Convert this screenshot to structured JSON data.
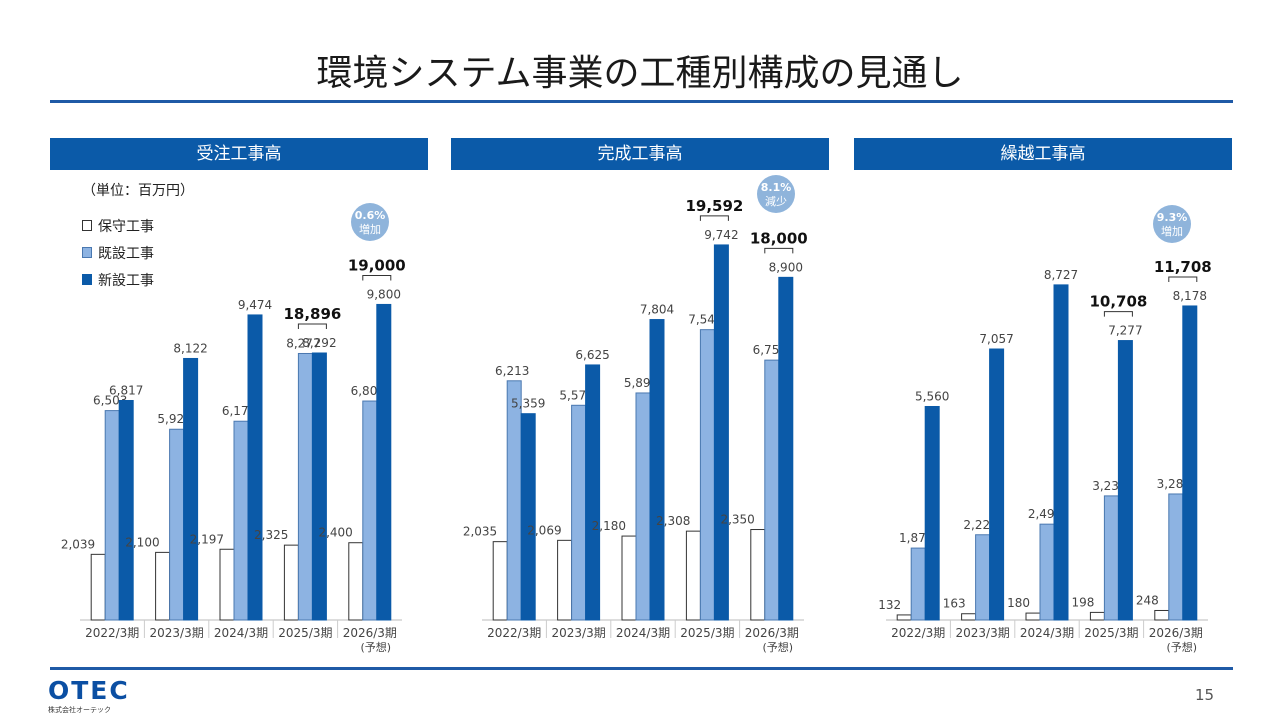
{
  "page": {
    "title": "環境システム事業の工種別構成の見通し",
    "page_number": "15"
  },
  "unit_label": "（単位：百万円）",
  "legend": [
    {
      "label": "保守工事",
      "color": "#ffffff"
    },
    {
      "label": "既設工事",
      "color": "#8db3e2"
    },
    {
      "label": "新設工事",
      "color": "#0b5aa8"
    }
  ],
  "logo": {
    "text": "OTEC",
    "sub": "株式会社オーテック"
  },
  "colors": {
    "accent": "#0b5aa8",
    "rule": "#1f5aa6",
    "badge": "#8fb4db"
  },
  "chart_data": [
    {
      "type": "bar",
      "title": "受注工事高",
      "categories": [
        "2022/3期",
        "2023/3期",
        "2024/3期",
        "2025/3期",
        "2026/3期"
      ],
      "category_notes": [
        "",
        "",
        "",
        "",
        "(予想)"
      ],
      "series": [
        {
          "name": "保守工事",
          "values": [
            2039,
            2100,
            2197,
            2325,
            2400
          ]
        },
        {
          "name": "既設工事",
          "values": [
            6503,
            5924,
            6173,
            8277,
            6800
          ]
        },
        {
          "name": "新設工事",
          "values": [
            6817,
            8122,
            9474,
            8292,
            9800
          ]
        }
      ],
      "totals": [
        {
          "index": 3,
          "label": "18,896"
        },
        {
          "index": 4,
          "label": "19,000"
        }
      ],
      "badge": {
        "line1": "0.6%",
        "line2": "増加"
      }
    },
    {
      "type": "bar",
      "title": "完成工事高",
      "categories": [
        "2022/3期",
        "2023/3期",
        "2024/3期",
        "2025/3期",
        "2026/3期"
      ],
      "category_notes": [
        "",
        "",
        "",
        "",
        "(予想)"
      ],
      "series": [
        {
          "name": "保守工事",
          "values": [
            2035,
            2069,
            2180,
            2308,
            2350
          ]
        },
        {
          "name": "既設工事",
          "values": [
            6213,
            5577,
            5897,
            7541,
            6750
          ]
        },
        {
          "name": "新設工事",
          "values": [
            5359,
            6625,
            7804,
            9742,
            8900
          ]
        }
      ],
      "totals": [
        {
          "index": 3,
          "label": "19,592"
        },
        {
          "index": 4,
          "label": "18,000"
        }
      ],
      "badge": {
        "line1": "8.1%",
        "line2": "減少"
      }
    },
    {
      "type": "bar",
      "title": "繰越工事高",
      "categories": [
        "2022/3期",
        "2023/3期",
        "2024/3期",
        "2025/3期",
        "2026/3期"
      ],
      "category_notes": [
        "",
        "",
        "",
        "",
        "(予想)"
      ],
      "series": [
        {
          "name": "保守工事",
          "values": [
            132,
            163,
            180,
            198,
            248
          ]
        },
        {
          "name": "既設工事",
          "values": [
            1873,
            2220,
            2496,
            3232,
            3282
          ]
        },
        {
          "name": "新設工事",
          "values": [
            5560,
            7057,
            8727,
            7277,
            8178
          ]
        }
      ],
      "totals": [
        {
          "index": 3,
          "label": "10,708"
        },
        {
          "index": 4,
          "label": "11,708"
        }
      ],
      "badge": {
        "line1": "9.3%",
        "line2": "増加"
      }
    }
  ]
}
